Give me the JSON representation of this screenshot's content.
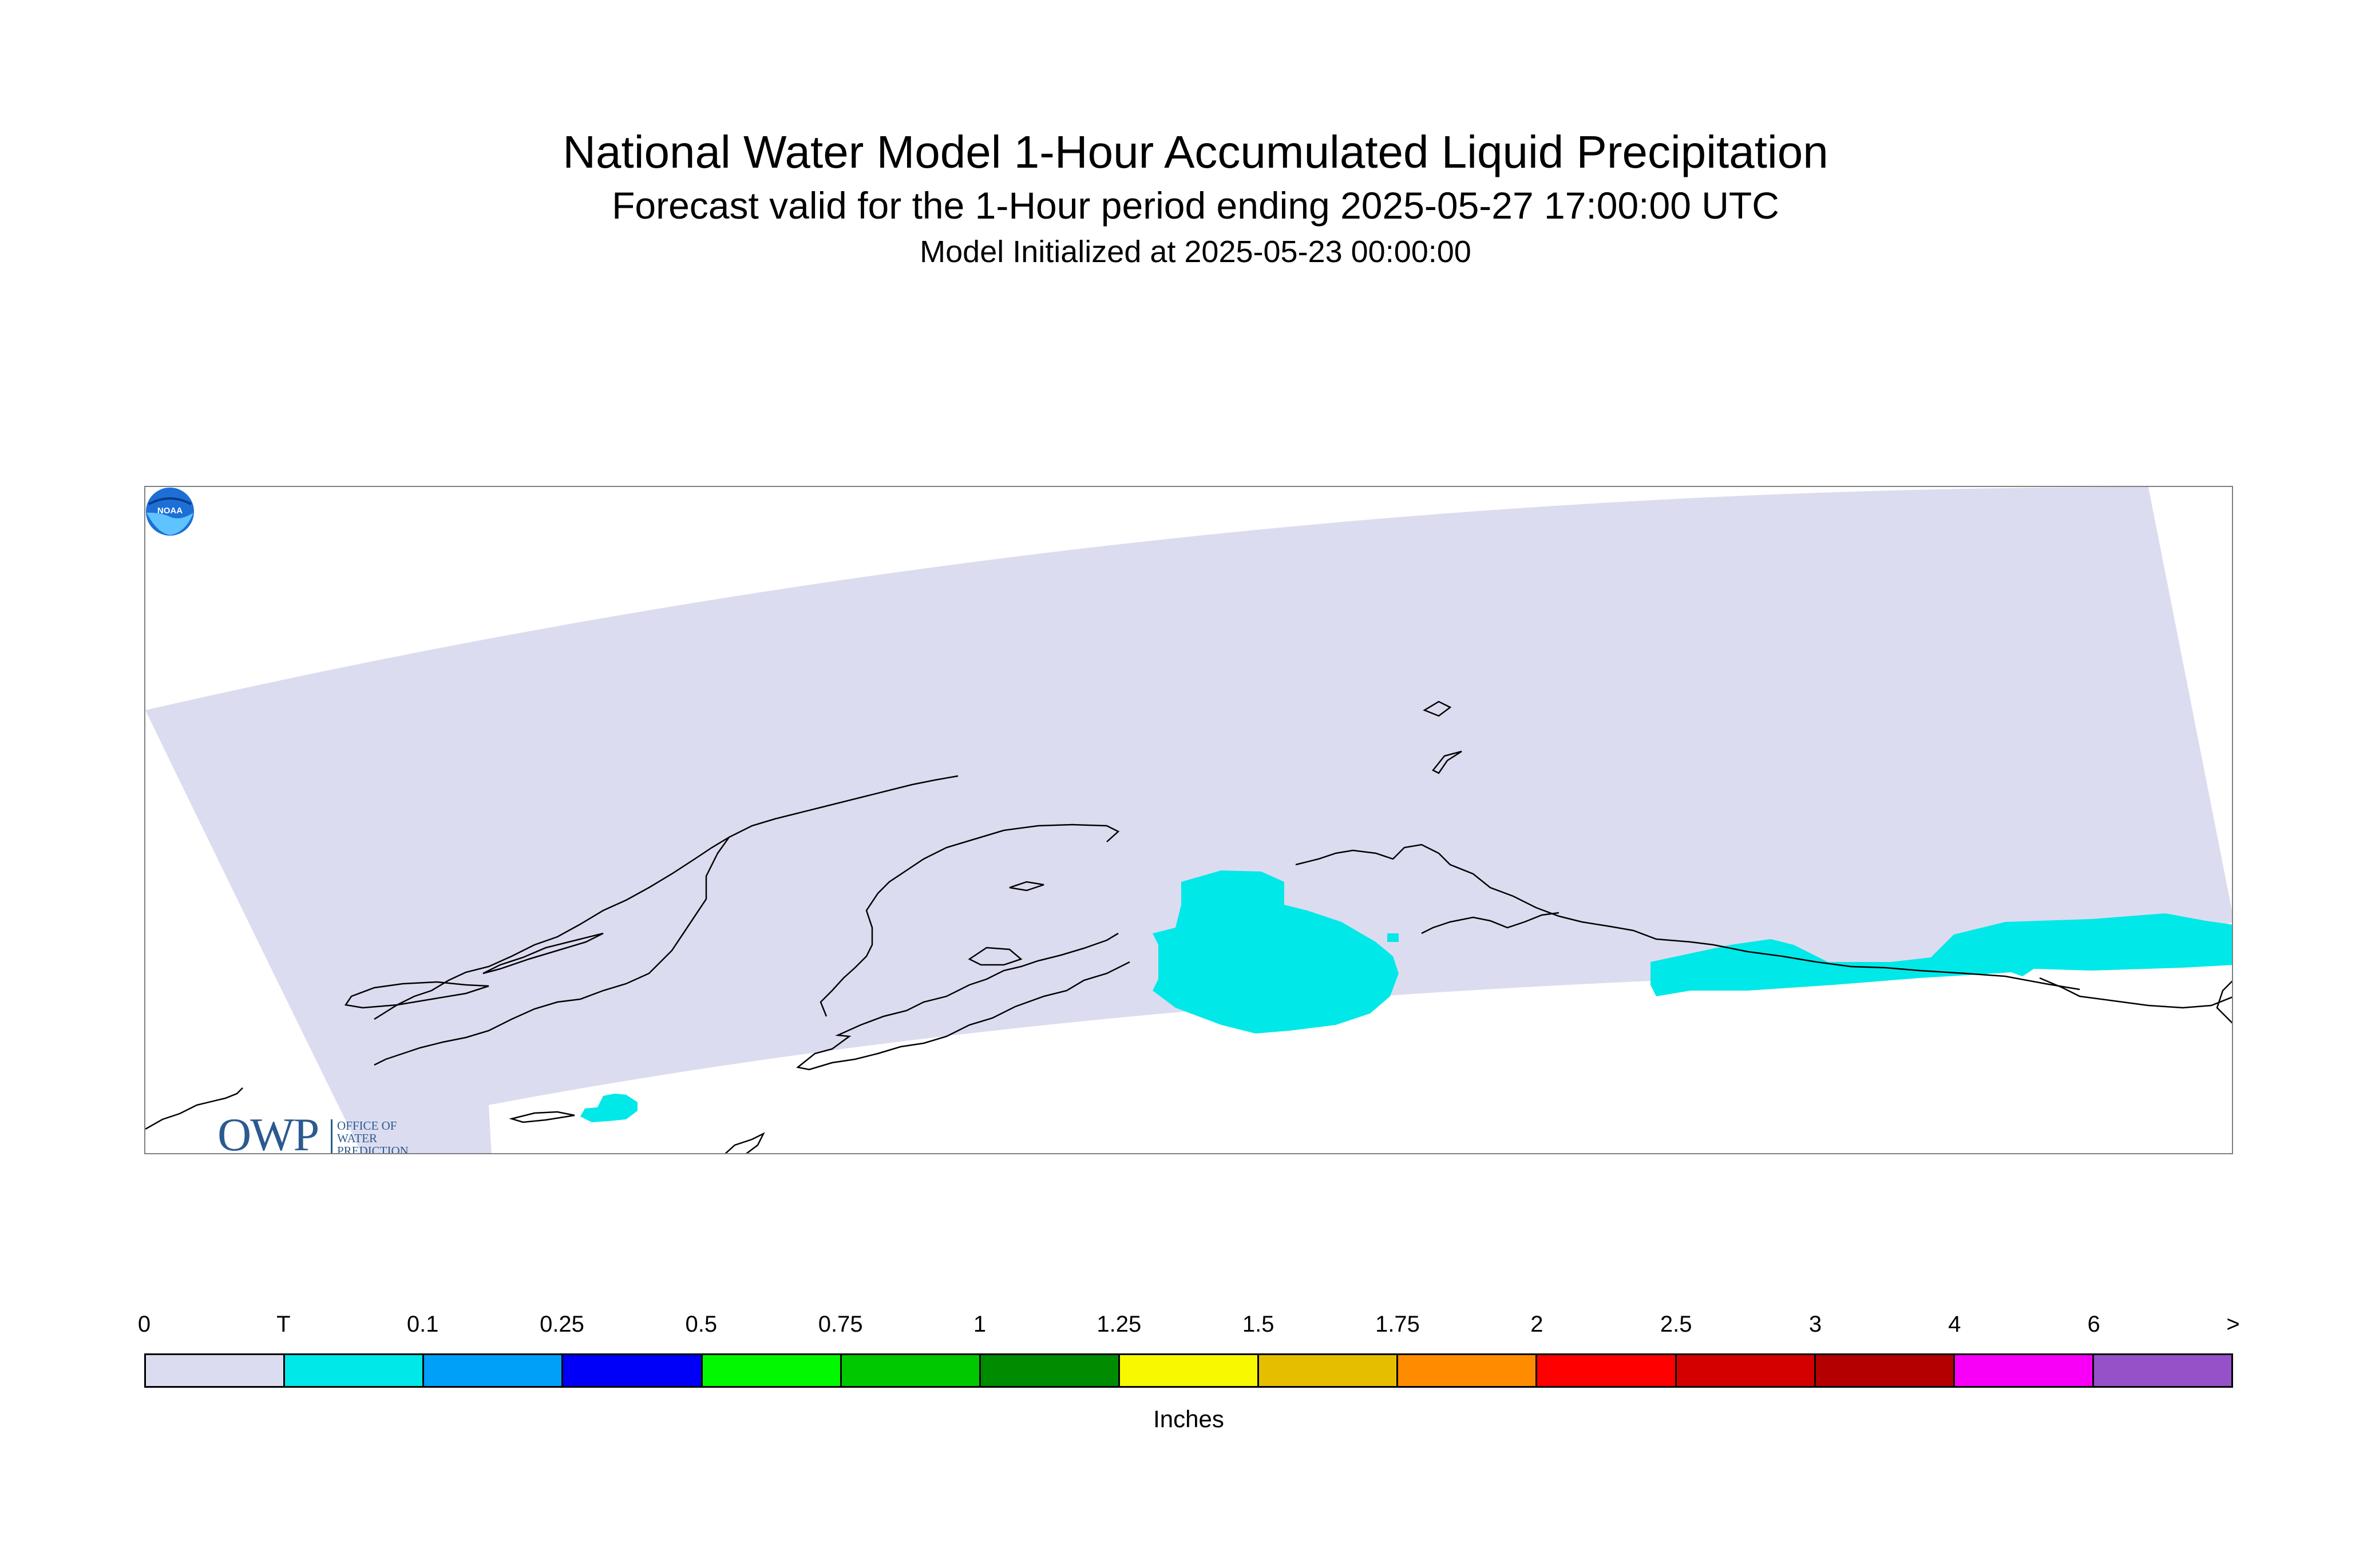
{
  "header": {
    "title": "National Water Model 1-Hour Accumulated Liquid Precipitation",
    "subtitle": "Forecast valid for the 1-Hour period ending 2025-05-27 17:00:00 UTC",
    "initialized": "Model Initialized at 2025-05-23 00:00:00"
  },
  "map": {
    "domain_fill_color": "#dcdcf0",
    "precip_color": "#00e8e8",
    "coastline_color": "#000000",
    "owp_logo": {
      "mark": "OWP",
      "text": "OFFICE OF\nWATER\nPREDICTION"
    },
    "noaa_logo": {
      "text": "NOAA"
    }
  },
  "legend": {
    "ticks": [
      "0",
      "T",
      "0.1",
      "0.25",
      "0.5",
      "0.75",
      "1",
      "1.25",
      "1.5",
      "1.75",
      "2",
      "2.5",
      "3",
      "4",
      "6",
      ">"
    ],
    "colors": [
      "#dcdcf0",
      "#00e8e8",
      "#00a0f8",
      "#0000f8",
      "#00f800",
      "#00c800",
      "#008c00",
      "#f8f800",
      "#e6be00",
      "#ff8c00",
      "#ff0000",
      "#d40000",
      "#b40000",
      "#f800f8",
      "#9650c8"
    ],
    "units": "Inches"
  }
}
